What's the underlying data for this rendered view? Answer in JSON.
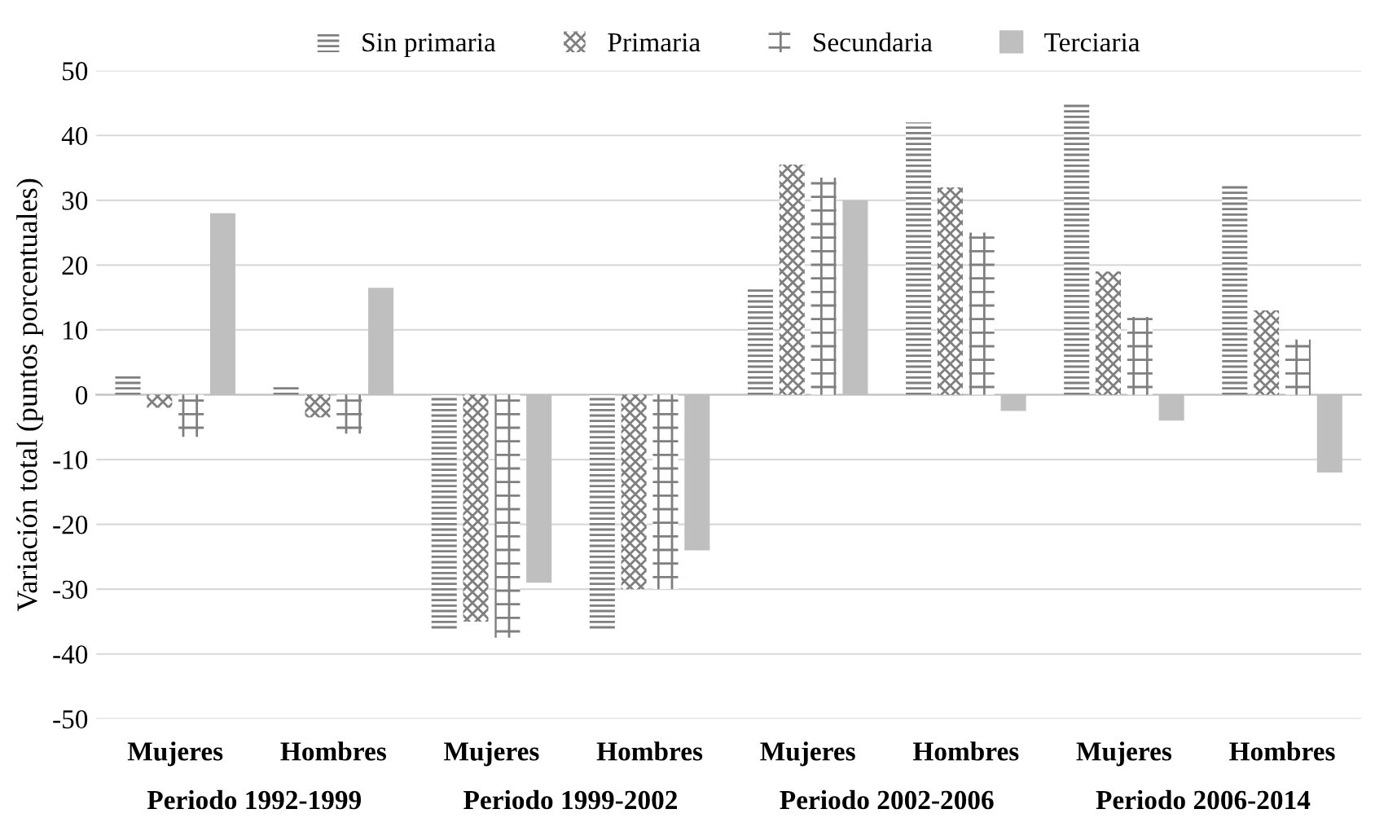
{
  "chart_data": {
    "type": "bar",
    "ylabel": "Variación total (puntos porcentuales)",
    "categories": [
      "Mujeres",
      "Hombres",
      "Mujeres",
      "Hombres",
      "Mujeres",
      "Hombres",
      "Mujeres",
      "Hombres"
    ],
    "series": [
      {
        "name": "Sin primaria",
        "color": "#7f7f7f",
        "values": [
          3.2,
          1.5,
          -36.5,
          -36.5,
          16.5,
          42,
          45,
          32.5
        ]
      },
      {
        "name": "Primaria",
        "color": "#7f7f7f",
        "values": [
          -2,
          -3.5,
          -35,
          -30,
          35.5,
          32,
          19,
          13
        ]
      },
      {
        "name": "Secundaria",
        "color": "#7f7f7f",
        "values": [
          -6.5,
          -6,
          -37.5,
          -30,
          33.5,
          25,
          12,
          8.5
        ]
      },
      {
        "name": "Terciaria",
        "color": "#bfbfbf",
        "values": [
          28,
          16.5,
          -29,
          -24,
          30,
          -2.5,
          -4,
          -12
        ]
      }
    ],
    "annotations": [
      "Periodo 1992-1999",
      "Periodo 1999-2002",
      "Periodo 2002-2006",
      "Periodo 2006-2014"
    ],
    "ylim": [
      -50,
      50
    ],
    "yticks": [
      -50,
      -40,
      -30,
      -20,
      -10,
      0,
      10,
      20,
      30,
      40,
      50
    ],
    "grid": "y",
    "legend": "top"
  }
}
